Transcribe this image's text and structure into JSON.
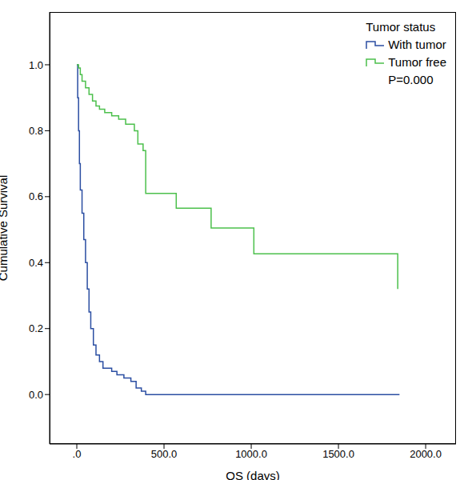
{
  "chart_data": {
    "type": "line",
    "line_style": "step",
    "xlabel": "OS (days)",
    "ylabel": "Cumulative Survival",
    "legend_title": "Tumor status",
    "legend": "top-right",
    "annotation": "P=0.000",
    "grid": false,
    "xlim": [
      -156,
      2174
    ],
    "ylim": [
      -0.15,
      1.16
    ],
    "xticks": [
      {
        "value": 0,
        "label": ".0"
      },
      {
        "value": 500,
        "label": "500.0"
      },
      {
        "value": 1000,
        "label": "1000.0"
      },
      {
        "value": 1500,
        "label": "1500.0"
      },
      {
        "value": 2000,
        "label": "2000.0"
      }
    ],
    "yticks": [
      {
        "value": 0,
        "label": "0.0"
      },
      {
        "value": 0.2,
        "label": "0.2"
      },
      {
        "value": 0.4,
        "label": "0.4"
      },
      {
        "value": 0.6,
        "label": "0.6"
      },
      {
        "value": 0.8,
        "label": "0.8"
      },
      {
        "value": 1,
        "label": "1.0"
      }
    ],
    "series": [
      {
        "name": "With tumor",
        "color": "#2b4ea2",
        "x": [
          0,
          5,
          10,
          15,
          20,
          30,
          40,
          50,
          60,
          70,
          80,
          95,
          110,
          130,
          150,
          200,
          230,
          270,
          310,
          340,
          370,
          395,
          1850
        ],
        "values": [
          1,
          0.9,
          0.8,
          0.7,
          0.62,
          0.55,
          0.47,
          0.4,
          0.32,
          0.25,
          0.2,
          0.15,
          0.12,
          0.1,
          0.08,
          0.07,
          0.06,
          0.05,
          0.04,
          0.02,
          0.01,
          0,
          0
        ]
      },
      {
        "name": "Tumor free",
        "color": "#4cc04c",
        "x": [
          0,
          10,
          20,
          30,
          50,
          70,
          90,
          110,
          130,
          160,
          200,
          240,
          280,
          330,
          350,
          380,
          395,
          570,
          770,
          1015,
          1840
        ],
        "values": [
          1,
          0.99,
          0.97,
          0.95,
          0.93,
          0.91,
          0.89,
          0.875,
          0.865,
          0.855,
          0.845,
          0.835,
          0.82,
          0.8,
          0.76,
          0.74,
          0.61,
          0.565,
          0.505,
          0.427,
          0.32
        ]
      }
    ]
  }
}
